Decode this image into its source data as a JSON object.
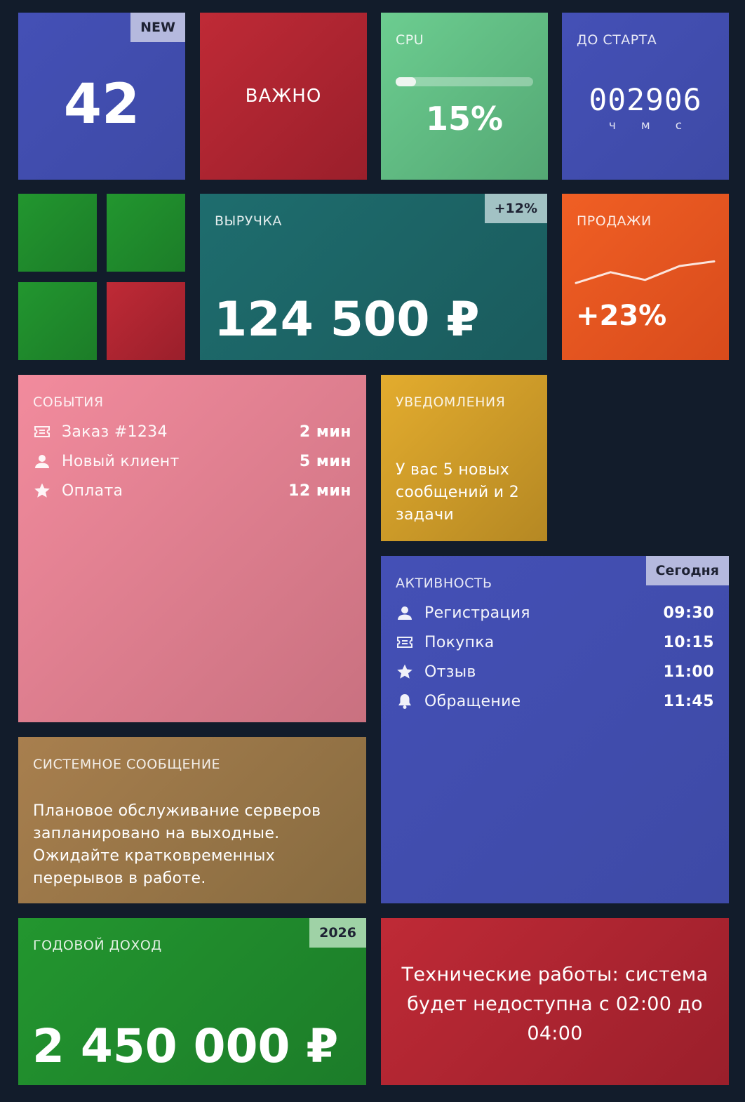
{
  "counter": {
    "value": "42",
    "badge": "NEW"
  },
  "important": {
    "label": "ВАЖНО"
  },
  "cpu": {
    "label": "CPU",
    "value_text": "15%",
    "fraction": 0.15
  },
  "countdown": {
    "label": "ДО СТАРТА",
    "digits": "002906",
    "units": [
      "ч",
      "м",
      "с"
    ]
  },
  "mini_tiles": {
    "colors": [
      "#22962f",
      "#22962f",
      "#22962f",
      "#bf2a36"
    ]
  },
  "revenue": {
    "label": "ВЫРУЧКА",
    "value": "124 500 ₽",
    "badge": "+12%"
  },
  "sales": {
    "label": "ПРОДАЖИ",
    "value": "+23%",
    "trend": [
      0.2,
      0.55,
      0.3,
      0.75,
      0.9
    ]
  },
  "events": {
    "label": "СОБЫТИЯ",
    "items": [
      {
        "icon": "ticket-icon",
        "text": "Заказ #1234",
        "time": "2 мин"
      },
      {
        "icon": "user-icon",
        "text": "Новый клиент",
        "time": "5 мин"
      },
      {
        "icon": "star-icon",
        "text": "Оплата",
        "time": "12 мин"
      }
    ]
  },
  "notifications": {
    "label": "УВЕДОМЛЕНИЯ",
    "text": "У вас 5 новых сообщений и 2 задачи"
  },
  "activity": {
    "label": "АКТИВНОСТЬ",
    "badge": "Сегодня",
    "items": [
      {
        "icon": "user-icon",
        "text": "Регистрация",
        "time": "09:30"
      },
      {
        "icon": "ticket-icon",
        "text": "Покупка",
        "time": "10:15"
      },
      {
        "icon": "star-icon",
        "text": "Отзыв",
        "time": "11:00"
      },
      {
        "icon": "bell-icon",
        "text": "Обращение",
        "time": "11:45"
      }
    ]
  },
  "system_message": {
    "label": "СИСТЕМНОЕ СООБЩЕНИЕ",
    "text": "Плановое обслуживание серверов запланировано на выходные. Ожидайте кратковременных перерывов в работе."
  },
  "annual_income": {
    "label": "ГОДОВОЙ ДОХОД",
    "value": "2 450 000 ₽",
    "badge": "2026"
  },
  "maintenance": {
    "text": "Технические работы: система будет недоступна с 02:00 до 04:00"
  },
  "colors": {
    "background": "#121c2b",
    "blue": "#4450b6",
    "red": "#bf2a36",
    "green": "#22962f",
    "teal": "#1e6d6e",
    "orange": "#f05f24",
    "pink": "#f28b9d",
    "gold": "#e3ac2e",
    "brown": "#a87f4e"
  }
}
